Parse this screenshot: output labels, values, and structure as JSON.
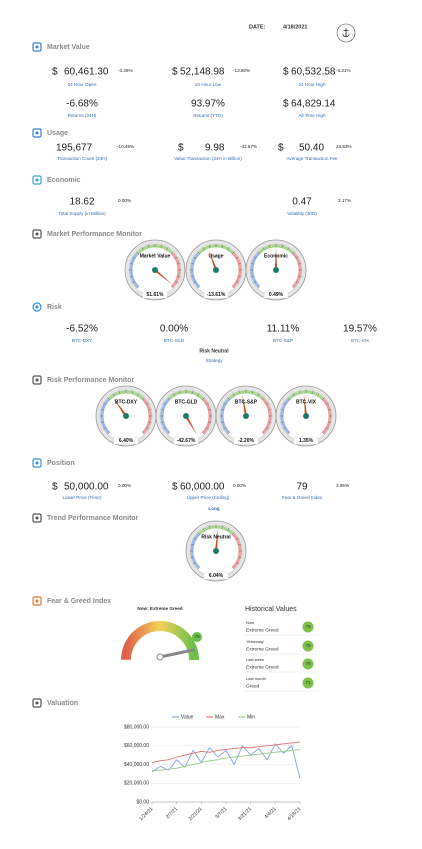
{
  "header": {
    "date_label": "DATE:",
    "date": "4/18/2021"
  },
  "market_value": {
    "title": "Market Value",
    "metrics": [
      {
        "currency": "$",
        "value": "60,461.30",
        "change": "-3.26%",
        "label": "24 Hour Open"
      },
      {
        "currency": "$",
        "value": "52,148.98",
        "change": "-13.80%",
        "label": "24 Hour Low"
      },
      {
        "currency": "$",
        "value": "60,532.58",
        "change": "-3.21%",
        "label": "24 Hour High"
      },
      {
        "value": "-6.68%",
        "label": "Returns (24H)"
      },
      {
        "value": "93.97%",
        "label": "Returns (YTD)"
      },
      {
        "currency": "$",
        "value": "64,829.14",
        "label": "All Time High"
      }
    ]
  },
  "usage": {
    "title": "Usage",
    "metrics": [
      {
        "value": "195,677",
        "change": "-10.45%",
        "label": "Transaction Count (24H)"
      },
      {
        "currency": "$",
        "value": "9.98",
        "change": "-42.67%",
        "label": "Value Transaction (24H in Billion)"
      },
      {
        "currency": "$",
        "value": "50.40",
        "change": "23.53%",
        "label": "Average Transaction Fee"
      }
    ]
  },
  "economic": {
    "title": "Economic",
    "metrics": [
      {
        "value": "18.62",
        "change": "0.00%",
        "label": "Total Supply (in Million)"
      },
      {
        "value": "0.47",
        "change": "2.17%",
        "label": "Volatility (30D)"
      }
    ]
  },
  "market_performance": {
    "title": "Market Performance Monitor",
    "gauges": [
      {
        "label": "Market Value",
        "value": "51.61%"
      },
      {
        "label": "Usage",
        "value": "-13.61%"
      },
      {
        "label": "Economic",
        "value": "0.49%"
      }
    ]
  },
  "risk": {
    "title": "Risk",
    "metrics": [
      {
        "value": "-6.52%",
        "label": "BTC-DXY"
      },
      {
        "value": "0.00%",
        "label": "BTC-GLD"
      },
      {
        "value": "11.11%",
        "label": "BTC-S&P"
      },
      {
        "value": "19.57%",
        "label": "BTC-VIX"
      }
    ],
    "strategy": "Risk Neutral",
    "strategy_label": "Strategy"
  },
  "risk_performance": {
    "title": "Risk Performance Monitor",
    "gauges": [
      {
        "label": "BTC-DXY",
        "value": "6.40%"
      },
      {
        "label": "BTC-GLD",
        "value": "-42.67%"
      },
      {
        "label": "BTC-S&P",
        "value": "-2.20%"
      },
      {
        "label": "BTC-VIX",
        "value": "1.35%"
      }
    ]
  },
  "position": {
    "title": "Position",
    "metrics": [
      {
        "currency": "$",
        "value": "50,000.00",
        "change": "0.00%",
        "label": "Lower Price (Floor)"
      },
      {
        "currency": "$",
        "value": "60,000.00",
        "change": "0.00%",
        "label": "Upper Price (Ceiling)"
      },
      {
        "value": "79",
        "change": "3.95%",
        "label": "Fear & Greed Index"
      }
    ],
    "direction": "Long"
  },
  "trend_performance": {
    "title": "Trend Performance Monitor",
    "gauges": [
      {
        "label": "Risk Neutral",
        "value": "6.04%"
      }
    ]
  },
  "fear_greed": {
    "title": "Fear & Greed Index",
    "now": "Now: Extreme Greed",
    "value": 79,
    "history_title": "Historical Values",
    "history": [
      {
        "period": "Now",
        "rating": "Extreme Greed",
        "value": 79
      },
      {
        "period": "Yesterday",
        "rating": "Extreme Greed",
        "value": 76
      },
      {
        "period": "Last week",
        "rating": "Extreme Greed",
        "value": 78
      },
      {
        "period": "Last month",
        "rating": "Greed",
        "value": 71
      }
    ]
  },
  "chart_data": {
    "type": "line",
    "title": "Valuation",
    "categories": [
      "1/24/21",
      null,
      null,
      "2/7/21",
      null,
      null,
      "2/21/21",
      null,
      null,
      "3/7/21",
      null,
      null,
      "3/21/21",
      null,
      null,
      "4/4/21",
      null,
      null,
      "4/18/21"
    ],
    "series": [
      {
        "name": "Value",
        "color": "#7ea6dc",
        "values": [
          32000,
          38000,
          34000,
          45000,
          37000,
          55000,
          42000,
          58000,
          48000,
          55000,
          40000,
          60000,
          50000,
          57000,
          45000,
          62000,
          52000,
          60000,
          25000
        ]
      },
      {
        "name": "Max",
        "color": "#e07a7a",
        "values": [
          42000,
          44000,
          45000,
          48000,
          50000,
          52000,
          54000,
          53000,
          55000,
          56000,
          57000,
          58000,
          58000,
          59000,
          60000,
          61000,
          62000,
          63000,
          64000
        ]
      },
      {
        "name": "Min",
        "color": "#9ccf8a",
        "values": [
          33000,
          34000,
          35000,
          36000,
          38000,
          40000,
          42000,
          44000,
          45000,
          47000,
          48000,
          49000,
          50000,
          51000,
          52000,
          53000,
          54000,
          55000,
          56000
        ]
      }
    ],
    "ylim": [
      0,
      80000
    ],
    "yticks": [
      {
        "value": 0,
        "label": "$0.00"
      },
      {
        "value": 20000,
        "label": "$20,000.00"
      },
      {
        "value": 40000,
        "label": "$40,000.00"
      },
      {
        "value": 60000,
        "label": "$60,000.00"
      },
      {
        "value": 80000,
        "label": "$80,000.00"
      }
    ],
    "grid": true,
    "legend": "top"
  }
}
